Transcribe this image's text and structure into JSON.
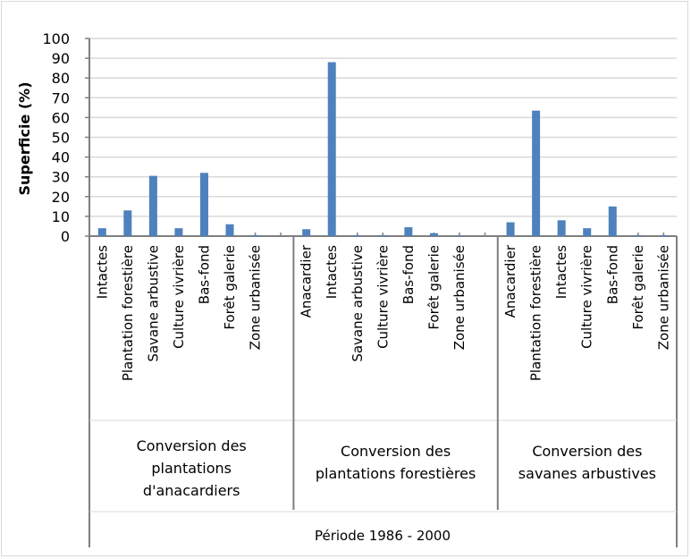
{
  "chart_data": {
    "type": "bar",
    "title": "",
    "ylabel": "Superficie (%)",
    "xlabel": "Période 1986 - 2000",
    "ylim": [
      0,
      100
    ],
    "yticks": [
      "0",
      "10",
      "20",
      "30",
      "40",
      "50",
      "60",
      "70",
      "80",
      "90",
      "100"
    ],
    "grid": true,
    "color": "#4f81bd",
    "groups": [
      {
        "label": "Conversion des plantations d'anacardiers",
        "label_lines": [
          "Conversion des",
          "plantations",
          "d'anacardiers"
        ],
        "categories": [
          "Intactes",
          "Plantation forestière",
          "Savane arbustive",
          "Culture vivrière",
          "Bas-fond",
          "Forêt galerie",
          "Zone urbanisée",
          ""
        ],
        "values": [
          4,
          13,
          30.5,
          4,
          32,
          6,
          0.5,
          null
        ]
      },
      {
        "label": "Conversion des plantations forestières",
        "label_lines": [
          "Conversion des",
          "plantations forestières"
        ],
        "categories": [
          "Anacardier",
          "Intactes",
          "Savane arbustive",
          "Culture vivrière",
          "Bas-fond",
          "Forêt galerie",
          "Zone urbanisée",
          ""
        ],
        "values": [
          3.5,
          88,
          0.5,
          0.5,
          4.5,
          1.5,
          0,
          null
        ]
      },
      {
        "label": "Conversion des savanes arbustives",
        "label_lines": [
          "Conversion des",
          "savanes arbustives"
        ],
        "categories": [
          "Anacardier",
          "Plantation forestière",
          "Intactes",
          "Culture vivrière",
          "Bas-fond",
          "Forêt galerie",
          "Zone urbanisée"
        ],
        "values": [
          7,
          63.5,
          8,
          4,
          15,
          0.5,
          0.5
        ]
      }
    ]
  }
}
